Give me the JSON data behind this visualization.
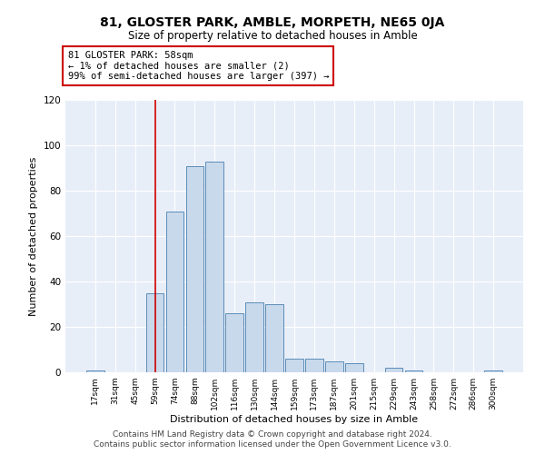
{
  "title": "81, GLOSTER PARK, AMBLE, MORPETH, NE65 0JA",
  "subtitle": "Size of property relative to detached houses in Amble",
  "xlabel": "Distribution of detached houses by size in Amble",
  "ylabel": "Number of detached properties",
  "bar_labels": [
    "17sqm",
    "31sqm",
    "45sqm",
    "59sqm",
    "74sqm",
    "88sqm",
    "102sqm",
    "116sqm",
    "130sqm",
    "144sqm",
    "159sqm",
    "173sqm",
    "187sqm",
    "201sqm",
    "215sqm",
    "229sqm",
    "243sqm",
    "258sqm",
    "272sqm",
    "286sqm",
    "300sqm"
  ],
  "bar_values": [
    1,
    0,
    0,
    35,
    71,
    91,
    93,
    26,
    31,
    30,
    6,
    6,
    5,
    4,
    0,
    2,
    1,
    0,
    0,
    0,
    1
  ],
  "bar_color": "#c9d9ec",
  "bar_edge_color": "#5b8db8",
  "vline_x": 3,
  "vline_color": "#cc0000",
  "annotation_text": "81 GLOSTER PARK: 58sqm\n← 1% of detached houses are smaller (2)\n99% of semi-detached houses are larger (397) →",
  "annotation_box_color": "#ffffff",
  "annotation_box_edge_color": "#cc0000",
  "ylim": [
    0,
    120
  ],
  "yticks": [
    0,
    20,
    40,
    60,
    80,
    100,
    120
  ],
  "footer1": "Contains HM Land Registry data © Crown copyright and database right 2024.",
  "footer2": "Contains public sector information licensed under the Open Government Licence v3.0.",
  "bg_color": "#e8eef8",
  "fig_bg_color": "#ffffff"
}
